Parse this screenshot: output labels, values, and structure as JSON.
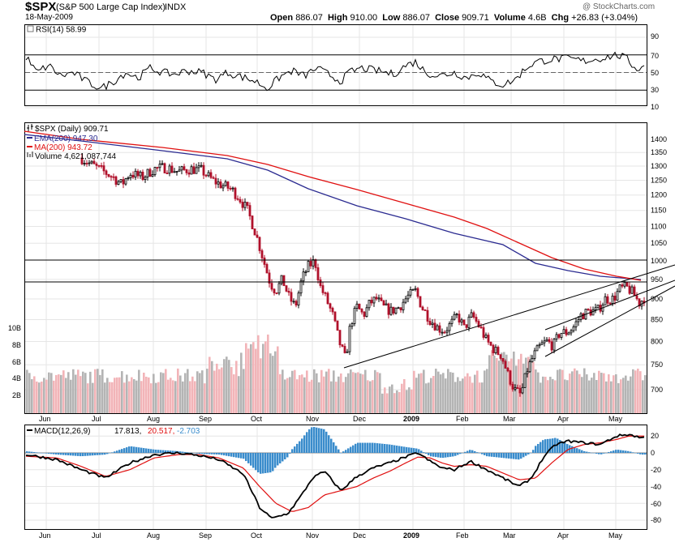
{
  "header": {
    "symbol": "$SPX",
    "name": "(S&P 500 Large Cap Index)",
    "exchange": "INDX",
    "date": "18-May-2009",
    "watermark": "@ StockCharts.com",
    "open_label": "Open",
    "open": "886.07",
    "high_label": "High",
    "high": "910.00",
    "low_label": "Low",
    "low": "886.07",
    "close_label": "Close",
    "close": "909.71",
    "volume_label": "Volume",
    "volume": "4.6B",
    "chg_label": "Chg",
    "chg": "+26.83 (+3.04%)"
  },
  "rsi": {
    "legend": "RSI(14) 58.99",
    "ticks": [
      "90",
      "70",
      "50",
      "30",
      "10"
    ]
  },
  "price": {
    "legend_main": "$SPX (Daily) 909.71",
    "legend_ema": "EMA(200) 947.30",
    "legend_ma": "MA(200) 943.72",
    "legend_vol": "Volume 4,621,087,744",
    "ticks": [
      "1400",
      "1350",
      "1300",
      "1250",
      "1200",
      "1150",
      "1100",
      "1050",
      "1000",
      "950",
      "900",
      "850",
      "800",
      "750",
      "700"
    ],
    "vol_ticks": [
      "10B",
      "8B",
      "6B",
      "4B",
      "2B"
    ]
  },
  "macd": {
    "legend_label": "MACD(12,26,9)",
    "v1": "17.813,",
    "v2": "20.517,",
    "v3": "-2.703",
    "ticks": [
      "20",
      "0",
      "-20",
      "-40",
      "-60",
      "-80"
    ]
  },
  "months": [
    "Jun",
    "Jul",
    "Aug",
    "Sep",
    "Oct",
    "Nov",
    "Dec",
    "2009",
    "Jan",
    "Feb",
    "Mar",
    "Apr",
    "May"
  ],
  "colors": {
    "up": "#000000",
    "down": "#b0102a",
    "ema": "#2a2a90",
    "ma": "#e01010",
    "vol_up": "#b4b4b4",
    "vol_down": "#f2b4b8",
    "hist": "#3a8ccc",
    "signal": "#e01010",
    "trend": "#000000"
  },
  "chart_data": [
    {
      "type": "line",
      "title": "RSI(14)",
      "ylim": [
        0,
        100
      ],
      "guides": [
        30,
        70
      ],
      "series": [
        {
          "name": "RSI(14)",
          "x": [
            "2008-06",
            "2008-07",
            "2008-08",
            "2008-09",
            "2008-10",
            "2008-11",
            "2008-12",
            "2009-01",
            "2009-02",
            "2009-03",
            "2009-04",
            "2009-05",
            "2009-05-18"
          ],
          "values": [
            55,
            35,
            48,
            45,
            30,
            48,
            52,
            55,
            42,
            38,
            60,
            65,
            58.99
          ]
        }
      ]
    },
    {
      "type": "candlestick",
      "title": "$SPX (Daily)",
      "ylim": [
        650,
        1450
      ],
      "log_scale": true,
      "x": [
        "2008-06",
        "2008-07",
        "2008-08",
        "2008-09",
        "2008-10",
        "2008-11",
        "2008-12",
        "2009-01",
        "2009-02",
        "2009-03",
        "2009-04",
        "2009-05",
        "2009-05-18"
      ],
      "series": [
        {
          "name": "$SPX (Daily)",
          "values": [
            1320,
            1250,
            1290,
            1230,
            940,
            890,
            880,
            900,
            800,
            700,
            830,
            900,
            909.71
          ]
        },
        {
          "name": "EMA(200)",
          "values": [
            1390,
            1370,
            1355,
            1330,
            1260,
            1180,
            1120,
            1080,
            1040,
            990,
            960,
            948,
            947.3
          ]
        },
        {
          "name": "MA(200)",
          "values": [
            1410,
            1385,
            1365,
            1345,
            1300,
            1240,
            1185,
            1135,
            1090,
            1030,
            980,
            950,
            943.72
          ]
        },
        {
          "name": "Volume",
          "values": [
            4.2,
            4.0,
            3.8,
            4.5,
            6.8,
            5.6,
            5.0,
            4.8,
            5.2,
            6.5,
            5.2,
            5.4,
            4.62
          ]
        }
      ],
      "horizontal_lines": [
        1000,
        945
      ]
    },
    {
      "type": "line",
      "title": "MACD(12,26,9)",
      "ylim": [
        -80,
        25
      ],
      "x": [
        "2008-06",
        "2008-07",
        "2008-08",
        "2008-09",
        "2008-10",
        "2008-11",
        "2008-12",
        "2009-01",
        "2009-02",
        "2009-03",
        "2009-04",
        "2009-05",
        "2009-05-18"
      ],
      "series": [
        {
          "name": "MACD",
          "values": [
            -2,
            -28,
            0,
            -8,
            -75,
            -30,
            -8,
            -5,
            -12,
            -35,
            10,
            18,
            17.813
          ]
        },
        {
          "name": "Signal",
          "values": [
            -3,
            -22,
            -5,
            -6,
            -55,
            -45,
            -18,
            -10,
            -10,
            -25,
            0,
            20,
            20.517
          ]
        },
        {
          "name": "Histogram",
          "values": [
            1,
            -6,
            5,
            -2,
            -20,
            15,
            10,
            5,
            -2,
            -10,
            10,
            -2,
            -2.703
          ]
        }
      ]
    }
  ]
}
